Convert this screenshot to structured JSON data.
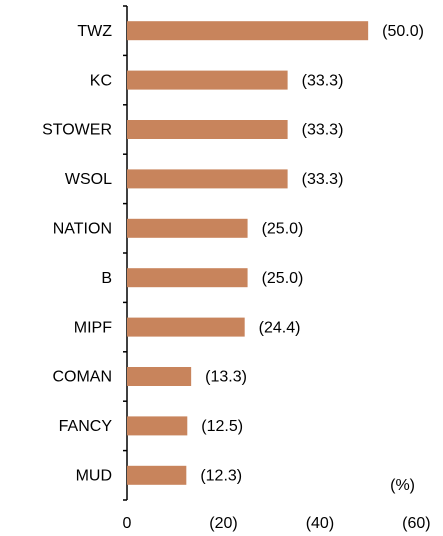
{
  "chart_data": {
    "type": "bar",
    "orientation": "horizontal",
    "categories": [
      "TWZ",
      "KC",
      "STOWER",
      "WSOL",
      "NATION",
      "B",
      "MIPF",
      "COMAN",
      "FANCY",
      "MUD"
    ],
    "values": [
      -50.0,
      -33.3,
      -33.3,
      -33.3,
      -25.0,
      -25.0,
      -24.4,
      -13.3,
      -12.5,
      -12.3
    ],
    "value_labels": [
      "(50.0)",
      "(33.3)",
      "(33.3)",
      "(33.3)",
      "(25.0)",
      "(25.0)",
      "(24.4)",
      "(13.3)",
      "(12.5)",
      "(12.3)"
    ],
    "color": "#c8845c",
    "xlim": [
      0,
      -62.2
    ],
    "xticks": [
      0,
      {
        "value": -20,
        "label": "(20)"
      },
      {
        "value": -40,
        "label": "(40)"
      },
      {
        "value": -60,
        "label": "(60)"
      }
    ],
    "xlabel": "(%)",
    "grid": false
  }
}
